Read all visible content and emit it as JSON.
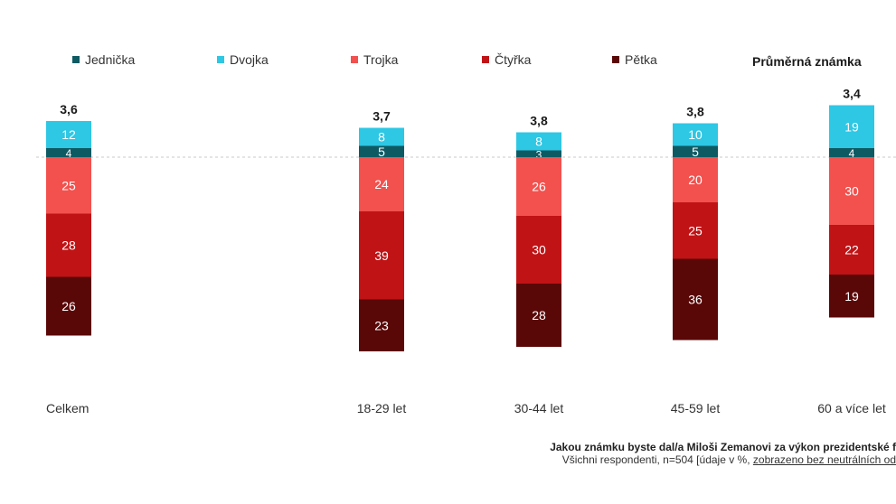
{
  "legend": {
    "items": [
      {
        "label": "Jednička",
        "color": "#0e5a63"
      },
      {
        "label": "Dvojka",
        "color": "#2ec7e4"
      },
      {
        "label": "Trojka",
        "color": "#f2514e"
      },
      {
        "label": "Čtyřka",
        "color": "#c01316"
      },
      {
        "label": "Pětka",
        "color": "#5a0707"
      }
    ],
    "average_title": "Průměrná známka"
  },
  "chart_data": {
    "type": "bar",
    "stacked": true,
    "baseline": "dashed line between Jednička and Trojka",
    "categories": [
      "Celkem",
      "18-29 let",
      "30-44 let",
      "45-59 let",
      "60 a více let"
    ],
    "series": [
      {
        "name": "Jednička",
        "color": "#0e5a63",
        "values": [
          4,
          5,
          3,
          5,
          4
        ]
      },
      {
        "name": "Dvojka",
        "color": "#2ec7e4",
        "values": [
          12,
          8,
          8,
          10,
          19
        ]
      },
      {
        "name": "Trojka",
        "color": "#f2514e",
        "values": [
          25,
          24,
          26,
          20,
          30
        ]
      },
      {
        "name": "Čtyřka",
        "color": "#c01316",
        "values": [
          28,
          39,
          30,
          25,
          22
        ]
      },
      {
        "name": "Pětka",
        "color": "#5a0707",
        "values": [
          26,
          23,
          28,
          36,
          19
        ]
      }
    ],
    "averages": [
      "3,6",
      "3,7",
      "3,8",
      "3,8",
      "3,4"
    ]
  },
  "footnote": {
    "question": "Jakou známku byste dal/a Miloši Zemanovi za výkon prezidentské f",
    "sample": "Všichni respondenti, n=504 [údaje v %, ",
    "sample_underlined": "zobrazeno bez neutrálních od"
  }
}
